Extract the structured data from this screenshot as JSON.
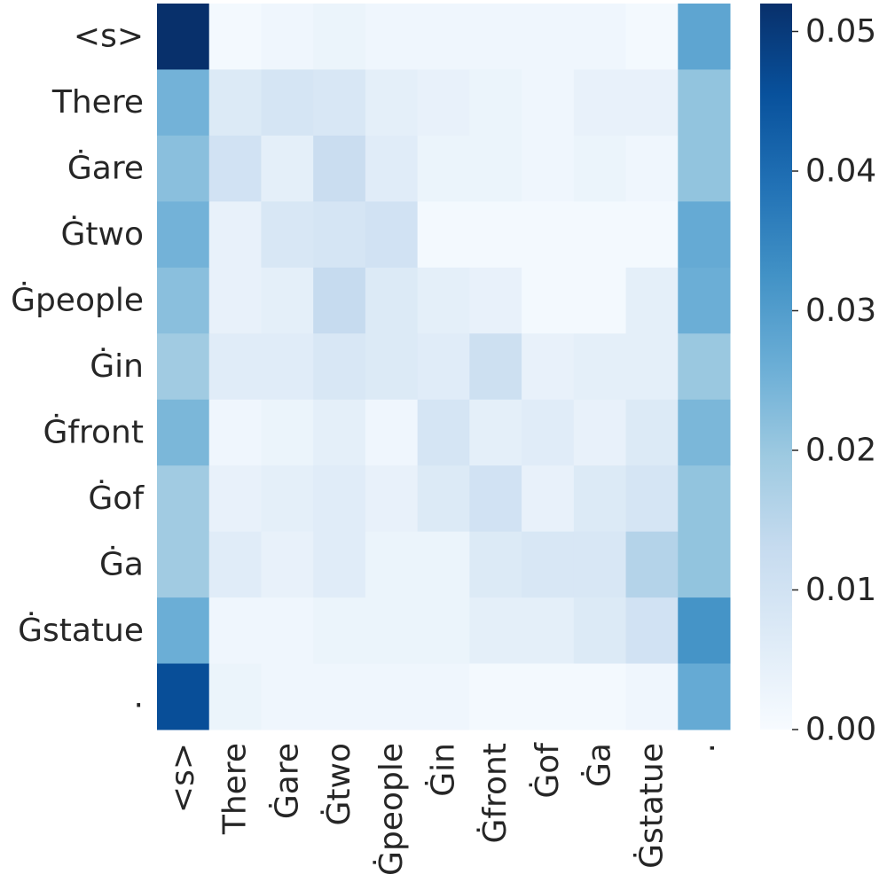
{
  "chart_data": {
    "type": "heatmap",
    "title": "",
    "xlabel": "",
    "ylabel": "",
    "row_labels": [
      "<s>",
      "There",
      "Ġare",
      "Ġtwo",
      "Ġpeople",
      "Ġin",
      "Ġfront",
      "Ġof",
      "Ġa",
      "Ġstatue",
      "."
    ],
    "col_labels": [
      "<s>",
      "There",
      "Ġare",
      "Ġtwo",
      "Ġpeople",
      "Ġin",
      "Ġfront",
      "Ġof",
      "Ġa",
      "Ġstatue",
      "."
    ],
    "values": [
      [
        0.052,
        0.001,
        0.002,
        0.003,
        0.002,
        0.002,
        0.002,
        0.002,
        0.002,
        0.001,
        0.028
      ],
      [
        0.025,
        0.007,
        0.009,
        0.008,
        0.005,
        0.004,
        0.003,
        0.002,
        0.004,
        0.004,
        0.021
      ],
      [
        0.022,
        0.01,
        0.005,
        0.012,
        0.006,
        0.003,
        0.003,
        0.002,
        0.003,
        0.002,
        0.021
      ],
      [
        0.025,
        0.004,
        0.008,
        0.009,
        0.01,
        0.001,
        0.001,
        0.001,
        0.001,
        0.001,
        0.027
      ],
      [
        0.022,
        0.004,
        0.005,
        0.013,
        0.007,
        0.005,
        0.004,
        0.001,
        0.001,
        0.005,
        0.026
      ],
      [
        0.019,
        0.006,
        0.006,
        0.008,
        0.007,
        0.006,
        0.011,
        0.004,
        0.005,
        0.005,
        0.02
      ],
      [
        0.024,
        0.002,
        0.003,
        0.005,
        0.002,
        0.009,
        0.005,
        0.006,
        0.004,
        0.007,
        0.024
      ],
      [
        0.019,
        0.004,
        0.005,
        0.006,
        0.004,
        0.007,
        0.01,
        0.004,
        0.007,
        0.009,
        0.021
      ],
      [
        0.019,
        0.006,
        0.004,
        0.006,
        0.003,
        0.003,
        0.007,
        0.008,
        0.008,
        0.016,
        0.021
      ],
      [
        0.026,
        0.002,
        0.002,
        0.003,
        0.003,
        0.003,
        0.005,
        0.005,
        0.007,
        0.01,
        0.032
      ],
      [
        0.046,
        0.003,
        0.002,
        0.002,
        0.002,
        0.002,
        0.001,
        0.001,
        0.001,
        0.002,
        0.027
      ]
    ],
    "colorbar": {
      "min": 0.0,
      "max": 0.052,
      "ticks": [
        0.0,
        0.01,
        0.02,
        0.03,
        0.04,
        0.05
      ],
      "tick_labels": [
        "0.00",
        "0.01",
        "0.02",
        "0.03",
        "0.04",
        "0.05"
      ],
      "colormap": "Blues",
      "colormap_stops": [
        "#f7fbff",
        "#deebf7",
        "#c6dbef",
        "#9ecae1",
        "#6baed6",
        "#4292c6",
        "#2171b5",
        "#08519c",
        "#08306b"
      ]
    },
    "grid": false,
    "legend": "colorbar-right"
  }
}
